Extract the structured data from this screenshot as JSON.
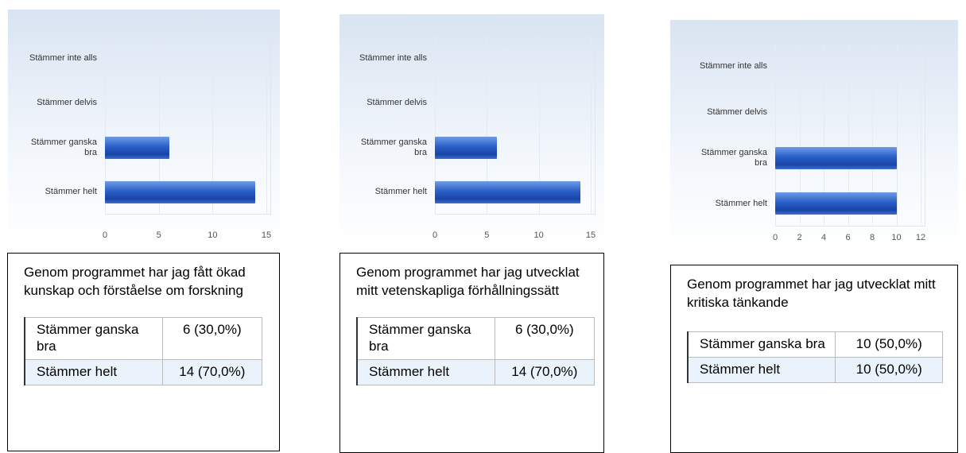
{
  "chart_data": [
    {
      "type": "barh",
      "categories": [
        "Stämmer inte alls",
        "Stämmer delvis",
        "Stämmer ganska bra",
        "Stämmer helt"
      ],
      "values": [
        0,
        0,
        6,
        14
      ],
      "xlim": [
        0,
        15
      ],
      "xticks": [
        0,
        5,
        10,
        15
      ],
      "grid": true
    },
    {
      "type": "barh",
      "categories": [
        "Stämmer inte alls",
        "Stämmer delvis",
        "Stämmer ganska bra",
        "Stämmer helt"
      ],
      "values": [
        0,
        0,
        6,
        14
      ],
      "xlim": [
        0,
        15
      ],
      "xticks": [
        0,
        5,
        10,
        15
      ],
      "grid": true
    },
    {
      "type": "barh",
      "categories": [
        "Stämmer inte alls",
        "Stämmer delvis",
        "Stämmer ganska bra",
        "Stämmer helt"
      ],
      "values": [
        0,
        0,
        10,
        10
      ],
      "xlim": [
        0,
        12
      ],
      "xticks": [
        0,
        2,
        4,
        6,
        8,
        10,
        12
      ],
      "grid": true
    }
  ],
  "panels": [
    {
      "question": "Genom programmet har jag fått ökad kunskap och förståelse om forskning",
      "table": {
        "rows": [
          [
            "Stämmer ganska bra",
            "6 (30,0%)"
          ],
          [
            "Stämmer helt",
            "14 (70,0%)"
          ]
        ]
      }
    },
    {
      "question": "Genom programmet har jag utvecklat mitt vetenskapliga förhållningssätt",
      "table": {
        "rows": [
          [
            "Stämmer ganska bra",
            "6 (30,0%)"
          ],
          [
            "Stämmer helt",
            "14 (70,0%)"
          ]
        ]
      }
    },
    {
      "question": "Genom programmet har jag utvecklat mitt kritiska tänkande",
      "table": {
        "rows": [
          [
            "Stämmer ganska bra",
            "10 (50,0%)"
          ],
          [
            "Stämmer helt",
            "10 (50,0%)"
          ]
        ]
      }
    }
  ]
}
